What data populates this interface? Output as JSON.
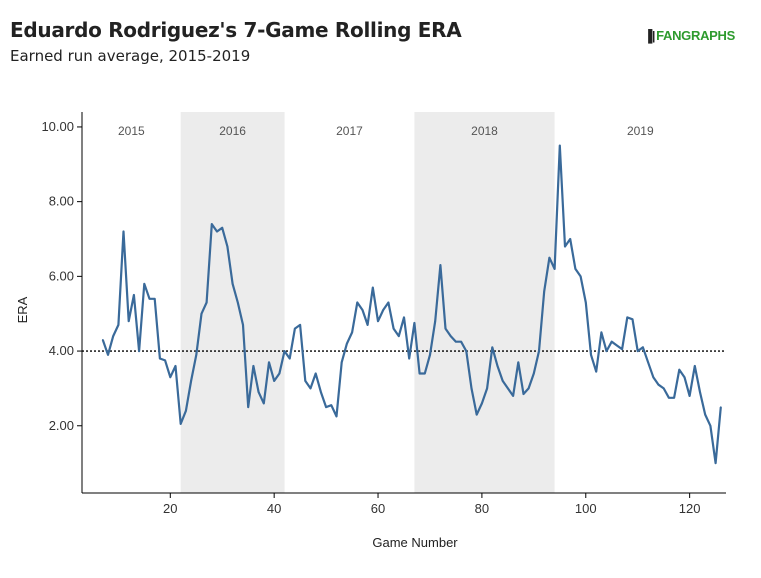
{
  "header": {
    "title": "Eduardo Rodriguez's 7-Game Rolling ERA",
    "subtitle": "Earned run average, 2015-2019",
    "logo_text": "FANGRAPHS"
  },
  "colors": {
    "line": "#3a6a9a",
    "shade": "#ececec",
    "axis": "#000000",
    "logo": "#2e9b2e"
  },
  "chart_data": {
    "type": "line",
    "xlabel": "Game Number",
    "ylabel": "ERA",
    "xlim": [
      3,
      127
    ],
    "ylim": [
      0.2,
      10.4
    ],
    "xticks": [
      20,
      40,
      60,
      80,
      100,
      120
    ],
    "yticks": [
      2,
      4,
      6,
      8,
      10
    ],
    "ytick_labels": [
      "2.00",
      "4.00",
      "6.00",
      "8.00",
      "10.00"
    ],
    "reference_line": 4.0,
    "year_bands": [
      {
        "label": "2015",
        "start": 3,
        "end": 22,
        "shaded": false
      },
      {
        "label": "2016",
        "start": 22,
        "end": 42,
        "shaded": true
      },
      {
        "label": "2017",
        "start": 42,
        "end": 67,
        "shaded": false
      },
      {
        "label": "2018",
        "start": 67,
        "end": 94,
        "shaded": true
      },
      {
        "label": "2019",
        "start": 94,
        "end": 127,
        "shaded": false
      }
    ],
    "series": [
      {
        "x": [
          7,
          8,
          9,
          10,
          11,
          12,
          13,
          14,
          15,
          16,
          17,
          18,
          19,
          20,
          21,
          22,
          23,
          24,
          25,
          26,
          27,
          28,
          29,
          30,
          31,
          32,
          33,
          34,
          35,
          36,
          37,
          38,
          39,
          40,
          41,
          42,
          43,
          44,
          45,
          46,
          47,
          48,
          49,
          50,
          51,
          52,
          53,
          54,
          55,
          56,
          57,
          58,
          59,
          60,
          61,
          62,
          63,
          64,
          65,
          66,
          67,
          68,
          69,
          70,
          71,
          72,
          73,
          74,
          75,
          76,
          77,
          78,
          79,
          80,
          81,
          82,
          83,
          84,
          85,
          86,
          87,
          88,
          89,
          90,
          91,
          92,
          93,
          94,
          95,
          96,
          97,
          98,
          99,
          100,
          101,
          102,
          103,
          104,
          105,
          106,
          107,
          108,
          109,
          110,
          111,
          112,
          113,
          114,
          115,
          116,
          117,
          118,
          119,
          120,
          121,
          122,
          123,
          124,
          125,
          126
        ],
        "y": [
          4.3,
          3.9,
          4.4,
          4.7,
          7.2,
          4.8,
          5.5,
          4.0,
          5.8,
          5.4,
          5.4,
          3.8,
          3.75,
          3.3,
          3.6,
          2.05,
          2.4,
          3.2,
          3.9,
          5.0,
          5.3,
          7.4,
          7.2,
          7.3,
          6.8,
          5.8,
          5.3,
          4.7,
          2.5,
          3.6,
          2.9,
          2.6,
          3.7,
          3.2,
          3.4,
          4.0,
          3.8,
          4.6,
          4.7,
          3.2,
          3.0,
          3.4,
          2.9,
          2.5,
          2.55,
          2.25,
          3.7,
          4.2,
          4.5,
          5.3,
          5.1,
          4.7,
          5.7,
          4.8,
          5.1,
          5.3,
          4.6,
          4.4,
          4.9,
          3.8,
          4.75,
          3.4,
          3.4,
          3.9,
          4.8,
          6.3,
          4.6,
          4.4,
          4.25,
          4.25,
          4.0,
          3.0,
          2.3,
          2.6,
          3.0,
          4.1,
          3.6,
          3.2,
          3.0,
          2.8,
          3.7,
          2.85,
          3.0,
          3.4,
          4.0,
          5.6,
          6.5,
          6.2,
          9.5,
          6.8,
          7.0,
          6.2,
          6.0,
          5.3,
          3.9,
          3.45,
          4.5,
          4.0,
          4.25,
          4.15,
          4.05,
          4.9,
          4.85,
          4.0,
          4.1,
          3.7,
          3.3,
          3.1,
          3.0,
          2.75,
          2.75,
          3.5,
          3.3,
          2.8,
          3.6,
          2.9,
          2.3,
          2.0,
          1.0,
          2.5
        ]
      }
    ]
  }
}
